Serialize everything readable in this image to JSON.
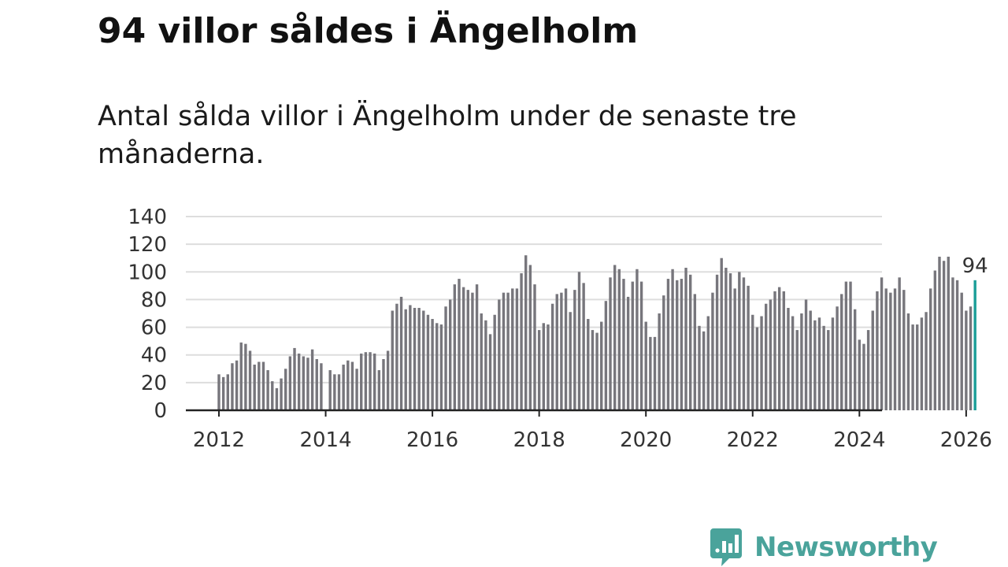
{
  "title": "94 villor såldes i Ängelholm",
  "subtitle": "Antal sålda villor i Ängelholm under de senaste tre månaderna.",
  "brand": {
    "name": "Newsworthy",
    "color": "#4aa39b",
    "icon": "newsworthy-chart-bubble-icon"
  },
  "colors": {
    "bar": "#77767c",
    "highlight": "#1a9e98",
    "grid": "#dddddd",
    "axis": "#222222"
  },
  "chart_data": {
    "type": "bar",
    "title": "94 villor såldes i Ängelholm",
    "xlabel": "",
    "ylabel": "",
    "grid": true,
    "ylim": [
      0,
      140
    ],
    "y_ticks": [
      "0",
      "20",
      "40",
      "60",
      "80",
      "100",
      "120",
      "140"
    ],
    "x_ticks": [
      "2012",
      "2014",
      "2016",
      "2018",
      "2020",
      "2022",
      "2024",
      "2026"
    ],
    "x_start": "2012-01",
    "x_end": "2026-03",
    "series": [
      {
        "name": "Antal sålda villor (rullande tre månader)",
        "values": [
          26,
          24,
          26,
          34,
          36,
          49,
          48,
          43,
          33,
          35,
          35,
          29,
          21,
          16,
          23,
          30,
          39,
          45,
          41,
          39,
          38,
          44,
          37,
          34,
          null,
          29,
          26,
          26,
          33,
          36,
          35,
          30,
          41,
          42,
          42,
          41,
          29,
          37,
          43,
          72,
          77,
          82,
          73,
          76,
          74,
          74,
          72,
          69,
          66,
          63,
          62,
          75,
          80,
          91,
          95,
          89,
          87,
          85,
          91,
          70,
          65,
          55,
          69,
          80,
          85,
          85,
          88,
          88,
          99,
          112,
          105,
          91,
          58,
          63,
          62,
          77,
          84,
          85,
          88,
          71,
          87,
          100,
          92,
          66,
          58,
          56,
          64,
          79,
          96,
          105,
          102,
          95,
          82,
          93,
          102,
          93,
          64,
          53,
          53,
          70,
          83,
          95,
          102,
          94,
          95,
          103,
          98,
          84,
          61,
          57,
          68,
          85,
          98,
          110,
          103,
          99,
          88,
          100,
          96,
          90,
          69,
          60,
          68,
          77,
          80,
          86,
          89,
          86,
          74,
          68,
          58,
          70,
          80,
          72,
          65,
          67,
          61,
          58,
          67,
          75,
          84,
          93,
          93,
          73,
          51,
          48,
          58,
          72,
          86,
          96,
          88,
          85,
          88,
          96,
          87,
          70,
          62,
          62,
          67,
          71,
          88,
          101,
          111,
          108,
          111,
          96,
          94,
          85,
          72,
          75,
          94
        ]
      }
    ],
    "annotations": [
      {
        "label": "94",
        "target": "2026-03",
        "value": 94
      }
    ]
  }
}
